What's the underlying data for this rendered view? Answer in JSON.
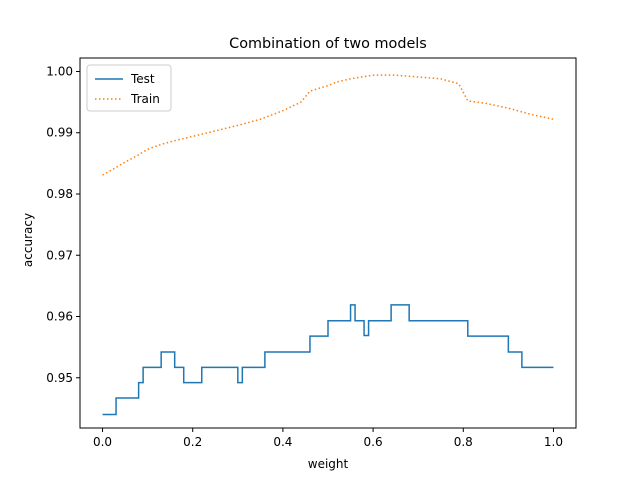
{
  "chart_data": {
    "type": "line",
    "title": "Combination of two models",
    "xlabel": "weight",
    "ylabel": "accuracy",
    "xlim": [
      -0.05,
      1.05
    ],
    "ylim": [
      0.9418,
      1.0022
    ],
    "xticks": [
      0.0,
      0.2,
      0.4,
      0.6,
      0.8,
      1.0
    ],
    "xtick_labels": [
      "0.0",
      "0.2",
      "0.4",
      "0.6",
      "0.8",
      "1.0"
    ],
    "yticks": [
      0.95,
      0.96,
      0.97,
      0.98,
      0.99,
      1.0
    ],
    "ytick_labels": [
      "0.95",
      "0.96",
      "0.97",
      "0.98",
      "0.99",
      "1.00"
    ],
    "grid": false,
    "legend_position": "top-left",
    "series": [
      {
        "name": "Test",
        "style": "solid",
        "color": "#1f77b4",
        "step": true,
        "x": [
          0.0,
          0.03,
          0.07,
          0.08,
          0.09,
          0.1,
          0.13,
          0.16,
          0.18,
          0.22,
          0.3,
          0.31,
          0.36,
          0.46,
          0.5,
          0.55,
          0.56,
          0.58,
          0.59,
          0.64,
          0.68,
          0.81,
          0.9,
          0.93,
          1.0
        ],
        "y": [
          0.944,
          0.9467,
          0.9467,
          0.9492,
          0.9517,
          0.9517,
          0.9542,
          0.9517,
          0.9492,
          0.9517,
          0.9492,
          0.9517,
          0.9542,
          0.9568,
          0.9593,
          0.9619,
          0.9593,
          0.9569,
          0.9593,
          0.9619,
          0.9593,
          0.9568,
          0.9542,
          0.9517,
          0.9517
        ]
      },
      {
        "name": "Train",
        "style": "dotted",
        "color": "#ff7f0e",
        "step": false,
        "x": [
          0.0,
          0.02,
          0.05,
          0.08,
          0.1,
          0.13,
          0.16,
          0.2,
          0.25,
          0.3,
          0.35,
          0.4,
          0.44,
          0.46,
          0.5,
          0.52,
          0.55,
          0.6,
          0.65,
          0.7,
          0.75,
          0.79,
          0.81,
          0.85,
          0.9,
          0.95,
          1.0
        ],
        "y": [
          0.9831,
          0.9839,
          0.9852,
          0.9864,
          0.9873,
          0.9881,
          0.9887,
          0.9894,
          0.9903,
          0.9912,
          0.9922,
          0.9936,
          0.995,
          0.9968,
          0.9977,
          0.9983,
          0.9988,
          0.9994,
          0.9994,
          0.9991,
          0.9988,
          0.998,
          0.9952,
          0.9948,
          0.994,
          0.993,
          0.9922
        ]
      }
    ]
  }
}
